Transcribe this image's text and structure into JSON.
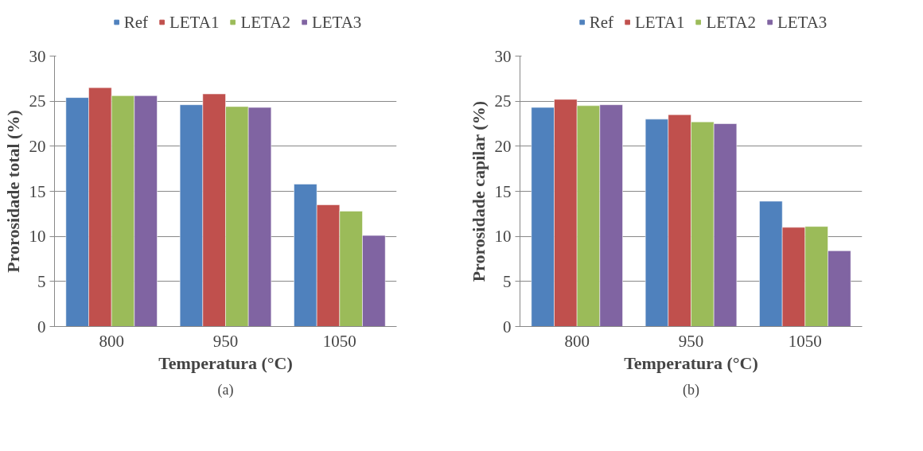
{
  "chart_data": [
    {
      "type": "bar",
      "categories": [
        "800",
        "950",
        "1050"
      ],
      "xlabel": "Temperatura (°C)",
      "ylabel": "Prorosidade total (%)",
      "ylim": [
        0,
        30
      ],
      "yticks": [
        0,
        5,
        10,
        15,
        20,
        25,
        30
      ],
      "grid": "y",
      "legend": "top",
      "annotations": [
        "(a)"
      ],
      "series": [
        {
          "name": "Ref",
          "color": "#4f81bd",
          "values": [
            25.4,
            24.6,
            15.8
          ]
        },
        {
          "name": "LETA1",
          "color": "#c0504d",
          "values": [
            26.5,
            25.8,
            13.5
          ]
        },
        {
          "name": "LETA2",
          "color": "#9bbb59",
          "values": [
            25.6,
            24.4,
            12.8
          ]
        },
        {
          "name": "LETA3",
          "color": "#8064a2",
          "values": [
            25.6,
            24.3,
            10.1
          ]
        }
      ]
    },
    {
      "type": "bar",
      "categories": [
        "800",
        "950",
        "1050"
      ],
      "xlabel": "Temperatura (°C)",
      "ylabel": "Prorosidade capilar (%)",
      "ylim": [
        0,
        30
      ],
      "yticks": [
        0,
        5,
        10,
        15,
        20,
        25,
        30
      ],
      "grid": "y",
      "legend": "top",
      "annotations": [
        "(b)"
      ],
      "series": [
        {
          "name": "Ref",
          "color": "#4f81bd",
          "values": [
            24.3,
            23.0,
            13.9
          ]
        },
        {
          "name": "LETA1",
          "color": "#c0504d",
          "values": [
            25.2,
            23.5,
            11.0
          ]
        },
        {
          "name": "LETA2",
          "color": "#9bbb59",
          "values": [
            24.5,
            22.7,
            11.1
          ]
        },
        {
          "name": "LETA3",
          "color": "#8064a2",
          "values": [
            24.6,
            22.5,
            8.4
          ]
        }
      ]
    }
  ]
}
